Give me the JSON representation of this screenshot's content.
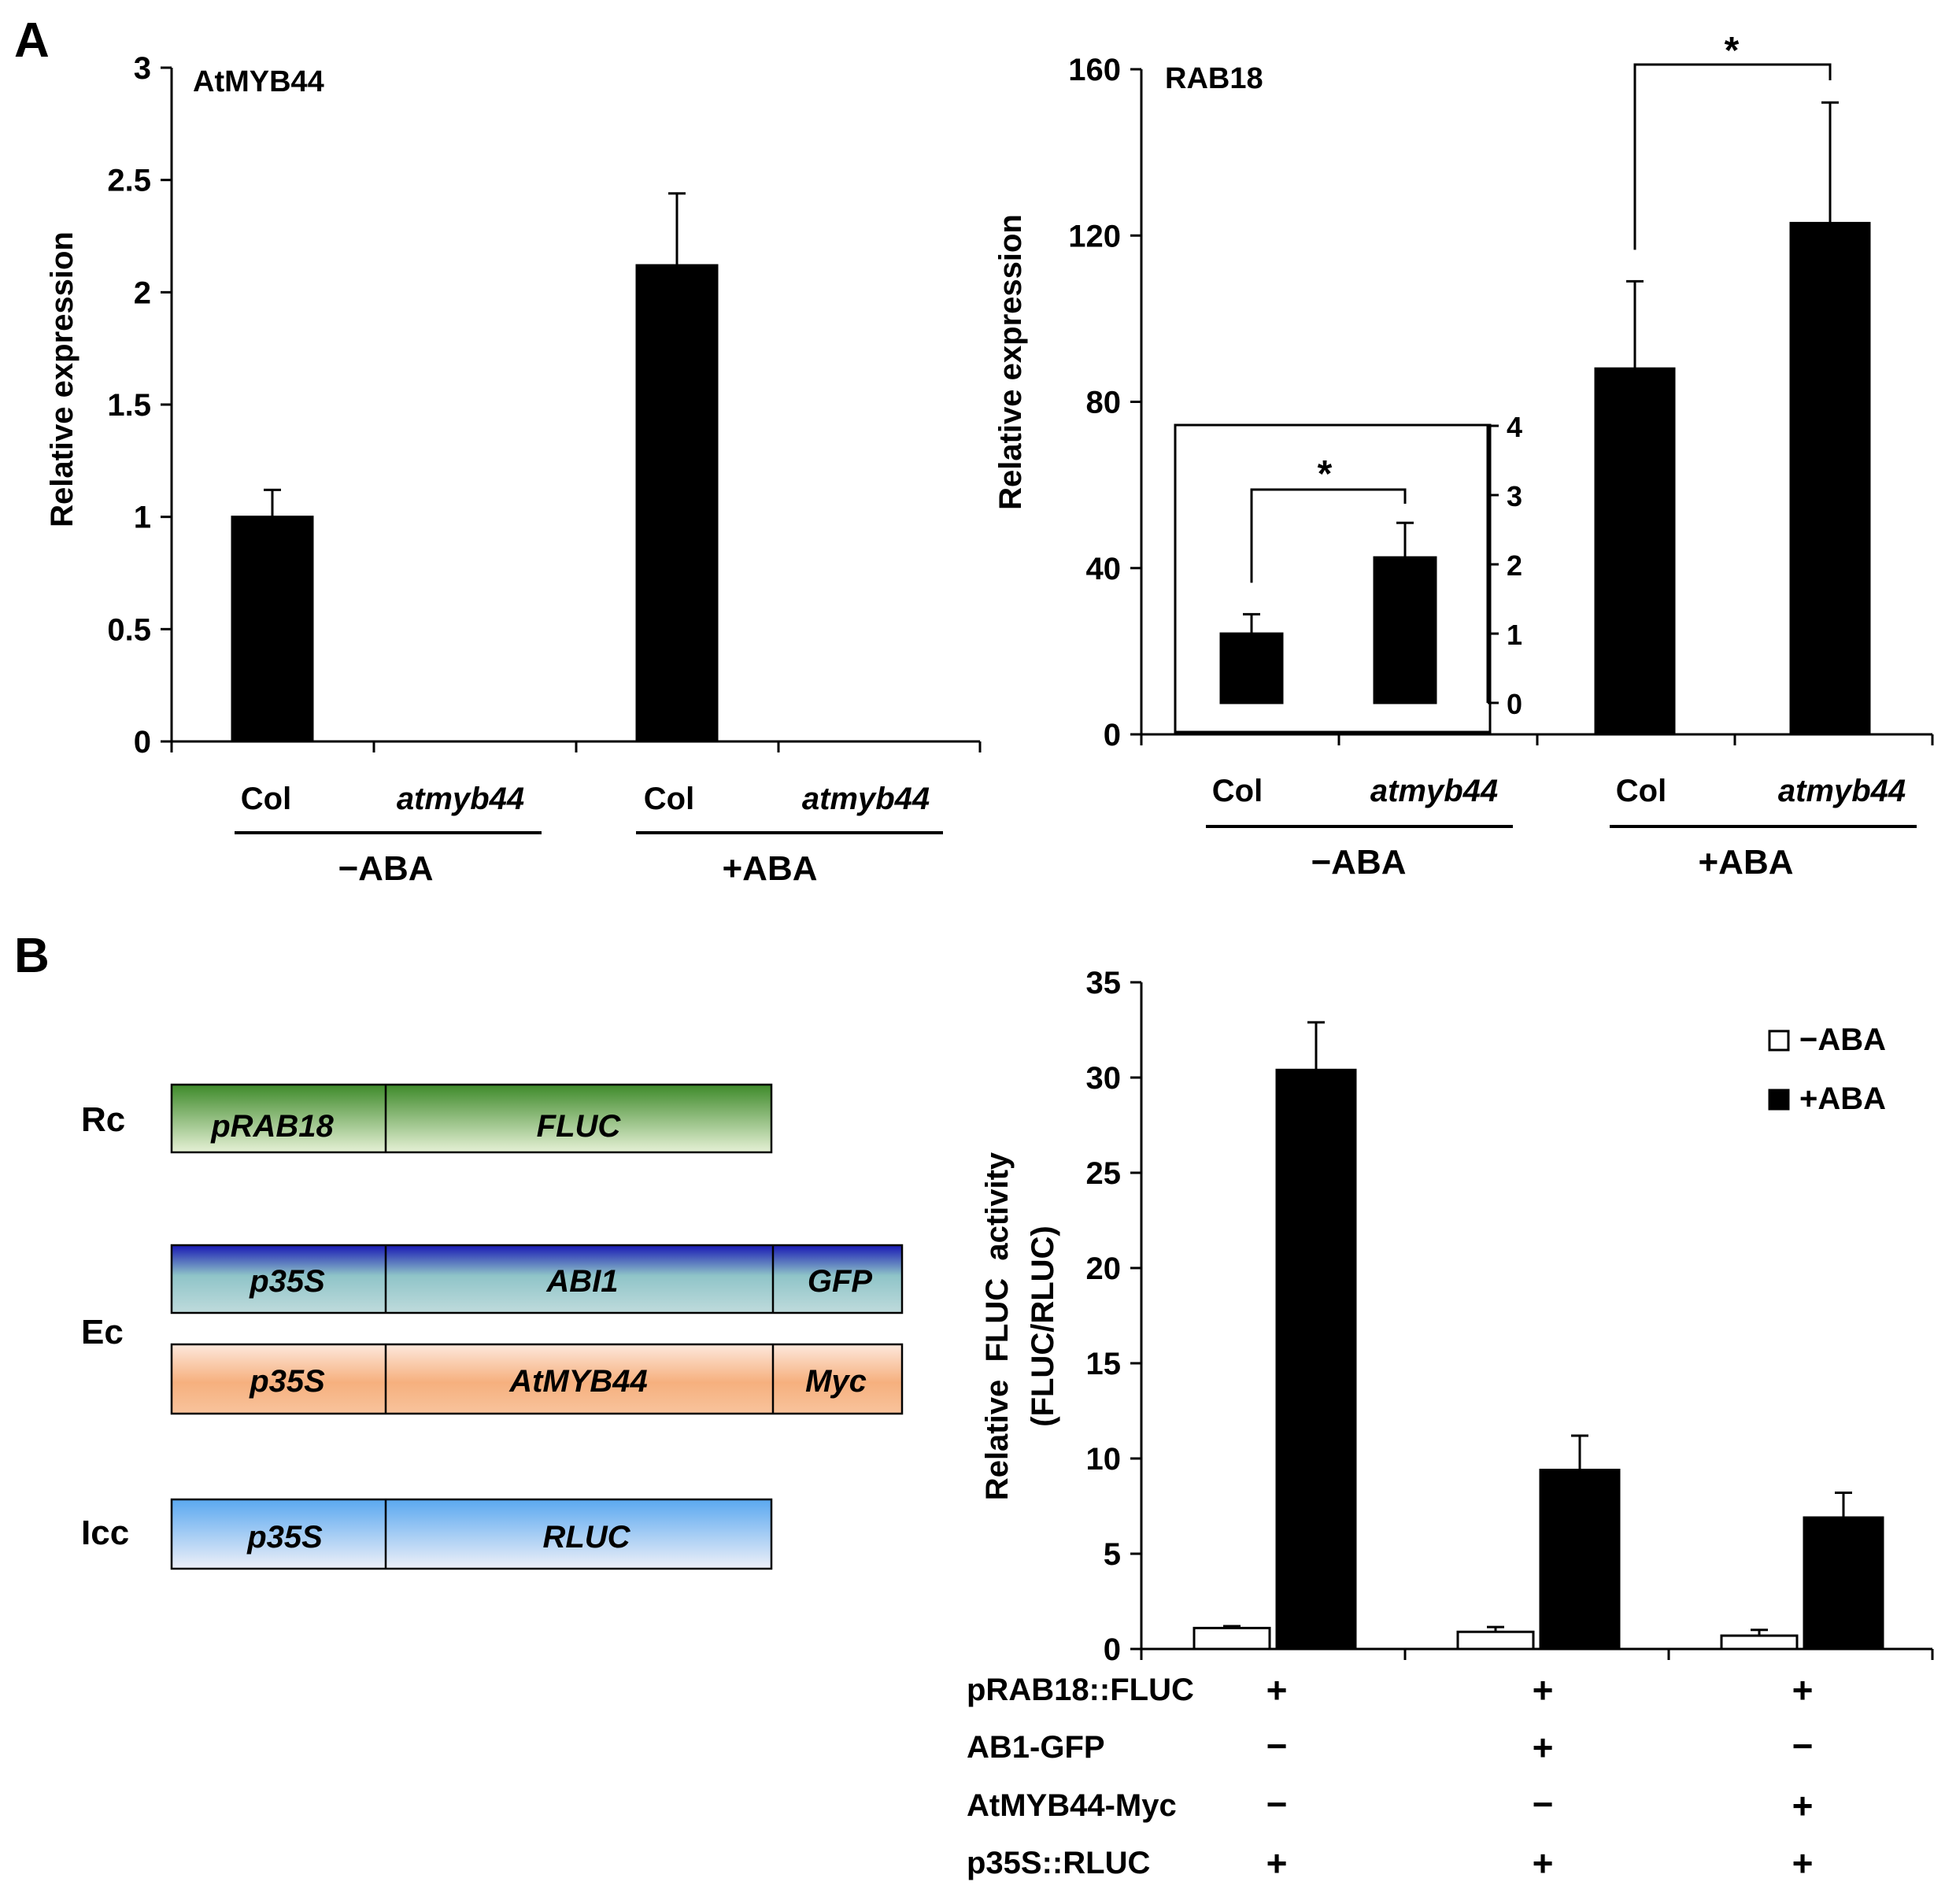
{
  "panel_labels": {
    "a": "A",
    "b": "B"
  },
  "chart_data": [
    {
      "id": "atmyb44",
      "type": "bar",
      "title": "AtMYB44",
      "ylabel": "Relative expression",
      "ylim": [
        0,
        3
      ],
      "yticks": [
        "0",
        "0.5",
        "1",
        "1.5",
        "2",
        "2.5",
        "3"
      ],
      "ytick_values": [
        0,
        0.5,
        1,
        1.5,
        2,
        2.5,
        3
      ],
      "categories": [
        "Col",
        "atmyb44",
        "Col",
        "atmyb44"
      ],
      "groups": [
        "−ABA",
        "+ABA"
      ],
      "values": [
        1.0,
        0.0,
        2.12,
        0.0
      ],
      "errors": [
        0.12,
        0.0,
        0.32,
        0.0
      ],
      "colors": {
        "bar": "#000000"
      }
    },
    {
      "id": "rab18",
      "type": "bar",
      "title": "RAB18",
      "ylabel": "Relative expression",
      "ylim": [
        0,
        160
      ],
      "yticks": [
        "0",
        "40",
        "80",
        "120",
        "160"
      ],
      "ytick_values": [
        0,
        40,
        80,
        120,
        160
      ],
      "categories": [
        "Col",
        "atmyb44",
        "Col",
        "atmyb44"
      ],
      "groups": [
        "−ABA",
        "+ABA"
      ],
      "values": [
        1.0,
        2.1,
        88,
        123
      ],
      "errors": [
        0.3,
        0.7,
        21,
        29
      ],
      "significance": "*",
      "inset": {
        "ylim": [
          0,
          4
        ],
        "yticks": [
          "0",
          "1",
          "2",
          "3",
          "4"
        ],
        "ytick_values": [
          0,
          1,
          2,
          3,
          4
        ],
        "values": [
          1.0,
          2.1
        ],
        "errors": [
          0.28,
          0.5
        ],
        "significance": "*"
      },
      "colors": {
        "bar": "#000000"
      }
    },
    {
      "id": "fluc",
      "type": "bar",
      "ylabel": "Relative  FLUC  activity",
      "ylabel2": "(FLUC/RLUC)",
      "ylim": [
        0,
        35
      ],
      "yticks": [
        "0",
        "5",
        "10",
        "15",
        "20",
        "25",
        "30",
        "35"
      ],
      "ytick_values": [
        0,
        5,
        10,
        15,
        20,
        25,
        30,
        35
      ],
      "legend_position": "top-right",
      "series": [
        {
          "name": "−ABA",
          "values": [
            1.1,
            0.9,
            0.7
          ],
          "errors": [
            0.1,
            0.25,
            0.3
          ],
          "color": "#ffffff"
        },
        {
          "name": "+ABA",
          "values": [
            30.4,
            9.4,
            6.9
          ],
          "errors": [
            2.5,
            1.8,
            1.3
          ],
          "color": "#000000"
        }
      ],
      "table": {
        "rows": [
          {
            "label": "pRAB18::FLUC",
            "signs": [
              "+",
              "+",
              "+"
            ]
          },
          {
            "label": "AB1-GFP",
            "signs": [
              "−",
              "+",
              "−"
            ]
          },
          {
            "label": "AtMYB44-Myc",
            "signs": [
              "−",
              "−",
              "+"
            ]
          },
          {
            "label": "p35S::RLUC",
            "signs": [
              "+",
              "+",
              "+"
            ]
          }
        ]
      }
    }
  ],
  "constructs": [
    {
      "label": "Rc",
      "segments": [
        "pRAB18",
        "FLUC"
      ],
      "color": "#5e9a3c"
    },
    {
      "label": "Ec",
      "segments": [
        "p35S",
        "ABI1",
        "GFP"
      ],
      "color": "#2a2ab8"
    },
    {
      "label": "",
      "segments": [
        "p35S",
        "AtMYB44",
        "Myc"
      ],
      "color": "#f4b27e"
    },
    {
      "label": "Icc",
      "segments": [
        "p35S",
        "RLUC"
      ],
      "color": "#6aaef0"
    }
  ]
}
